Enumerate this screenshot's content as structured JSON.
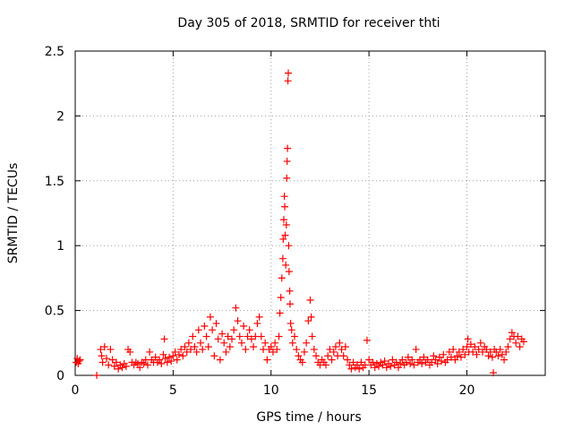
{
  "chart_data": {
    "type": "scatter",
    "title": "Day 305 of 2018, SRMTID for receiver thti",
    "xlabel": "GPS time / hours",
    "ylabel": "SRMTID / TECUs",
    "xlim": [
      0,
      24
    ],
    "ylim": [
      0,
      2.5
    ],
    "xticks": [
      0,
      5,
      10,
      15,
      20
    ],
    "xtick_labels": [
      "0",
      "5",
      "10",
      "15",
      "20"
    ],
    "yticks": [
      0,
      0.5,
      1,
      1.5,
      2,
      2.5
    ],
    "ytick_labels": [
      "0",
      "0.5",
      "1",
      "1.5",
      "2",
      "2.5"
    ],
    "grid": true,
    "marker": "+",
    "series": [
      {
        "name": "SRMTID",
        "color": "#ff0000",
        "points": [
          [
            0.05,
            0.1
          ],
          [
            0.1,
            0.13
          ],
          [
            0.15,
            0.09
          ],
          [
            0.2,
            0.11
          ],
          [
            0.25,
            0.12
          ],
          [
            1.1,
            0.0
          ],
          [
            1.3,
            0.2
          ],
          [
            1.35,
            0.15
          ],
          [
            1.4,
            0.1
          ],
          [
            1.5,
            0.22
          ],
          [
            1.6,
            0.13
          ],
          [
            1.7,
            0.08
          ],
          [
            1.8,
            0.2
          ],
          [
            1.9,
            0.12
          ],
          [
            2.0,
            0.07
          ],
          [
            2.1,
            0.1
          ],
          [
            2.2,
            0.05
          ],
          [
            2.3,
            0.08
          ],
          [
            2.4,
            0.06
          ],
          [
            2.5,
            0.09
          ],
          [
            2.6,
            0.07
          ],
          [
            2.7,
            0.2
          ],
          [
            2.8,
            0.18
          ],
          [
            2.9,
            0.1
          ],
          [
            3.0,
            0.08
          ],
          [
            3.1,
            0.1
          ],
          [
            3.2,
            0.09
          ],
          [
            3.3,
            0.06
          ],
          [
            3.4,
            0.1
          ],
          [
            3.5,
            0.09
          ],
          [
            3.6,
            0.12
          ],
          [
            3.7,
            0.08
          ],
          [
            3.8,
            0.18
          ],
          [
            3.9,
            0.12
          ],
          [
            4.0,
            0.1
          ],
          [
            4.1,
            0.14
          ],
          [
            4.2,
            0.1
          ],
          [
            4.3,
            0.12
          ],
          [
            4.4,
            0.09
          ],
          [
            4.5,
            0.16
          ],
          [
            4.55,
            0.28
          ],
          [
            4.6,
            0.13
          ],
          [
            4.7,
            0.1
          ],
          [
            4.8,
            0.14
          ],
          [
            4.9,
            0.11
          ],
          [
            5.0,
            0.15
          ],
          [
            5.1,
            0.18
          ],
          [
            5.2,
            0.12
          ],
          [
            5.3,
            0.16
          ],
          [
            5.4,
            0.2
          ],
          [
            5.5,
            0.15
          ],
          [
            5.6,
            0.22
          ],
          [
            5.7,
            0.18
          ],
          [
            5.8,
            0.25
          ],
          [
            5.9,
            0.2
          ],
          [
            6.0,
            0.3
          ],
          [
            6.1,
            0.22
          ],
          [
            6.2,
            0.18
          ],
          [
            6.3,
            0.35
          ],
          [
            6.4,
            0.25
          ],
          [
            6.5,
            0.2
          ],
          [
            6.6,
            0.38
          ],
          [
            6.7,
            0.3
          ],
          [
            6.8,
            0.22
          ],
          [
            6.9,
            0.45
          ],
          [
            7.0,
            0.35
          ],
          [
            7.1,
            0.15
          ],
          [
            7.2,
            0.4
          ],
          [
            7.3,
            0.28
          ],
          [
            7.4,
            0.12
          ],
          [
            7.5,
            0.32
          ],
          [
            7.6,
            0.25
          ],
          [
            7.7,
            0.18
          ],
          [
            7.8,
            0.3
          ],
          [
            7.9,
            0.22
          ],
          [
            8.0,
            0.28
          ],
          [
            8.1,
            0.35
          ],
          [
            8.2,
            0.52
          ],
          [
            8.3,
            0.42
          ],
          [
            8.4,
            0.3
          ],
          [
            8.5,
            0.25
          ],
          [
            8.6,
            0.38
          ],
          [
            8.7,
            0.2
          ],
          [
            8.8,
            0.3
          ],
          [
            8.9,
            0.35
          ],
          [
            9.0,
            0.28
          ],
          [
            9.1,
            0.22
          ],
          [
            9.2,
            0.3
          ],
          [
            9.3,
            0.4
          ],
          [
            9.4,
            0.45
          ],
          [
            9.5,
            0.3
          ],
          [
            9.6,
            0.2
          ],
          [
            9.7,
            0.25
          ],
          [
            9.8,
            0.12
          ],
          [
            9.9,
            0.2
          ],
          [
            10.0,
            0.22
          ],
          [
            10.1,
            0.18
          ],
          [
            10.2,
            0.25
          ],
          [
            10.3,
            0.2
          ],
          [
            10.4,
            0.3
          ],
          [
            10.45,
            0.48
          ],
          [
            10.5,
            0.6
          ],
          [
            10.55,
            0.75
          ],
          [
            10.6,
            0.9
          ],
          [
            10.62,
            1.05
          ],
          [
            10.65,
            1.2
          ],
          [
            10.68,
            1.38
          ],
          [
            10.7,
            1.3
          ],
          [
            10.72,
            1.08
          ],
          [
            10.75,
            0.85
          ],
          [
            10.78,
            1.16
          ],
          [
            10.8,
            1.52
          ],
          [
            10.82,
            1.65
          ],
          [
            10.84,
            1.75
          ],
          [
            10.86,
            2.27
          ],
          [
            10.88,
            2.33
          ],
          [
            10.9,
            1.0
          ],
          [
            10.92,
            0.8
          ],
          [
            10.95,
            0.65
          ],
          [
            10.97,
            0.55
          ],
          [
            11.0,
            0.4
          ],
          [
            11.05,
            0.35
          ],
          [
            11.1,
            0.25
          ],
          [
            11.2,
            0.3
          ],
          [
            11.3,
            0.2
          ],
          [
            11.4,
            0.15
          ],
          [
            11.5,
            0.12
          ],
          [
            11.6,
            0.1
          ],
          [
            11.7,
            0.18
          ],
          [
            11.8,
            0.25
          ],
          [
            11.9,
            0.42
          ],
          [
            12.0,
            0.58
          ],
          [
            12.05,
            0.45
          ],
          [
            12.1,
            0.3
          ],
          [
            12.2,
            0.2
          ],
          [
            12.3,
            0.15
          ],
          [
            12.4,
            0.1
          ],
          [
            12.5,
            0.08
          ],
          [
            12.6,
            0.12
          ],
          [
            12.7,
            0.1
          ],
          [
            12.8,
            0.08
          ],
          [
            12.9,
            0.15
          ],
          [
            13.0,
            0.2
          ],
          [
            13.1,
            0.12
          ],
          [
            13.2,
            0.18
          ],
          [
            13.3,
            0.22
          ],
          [
            13.4,
            0.15
          ],
          [
            13.5,
            0.25
          ],
          [
            13.6,
            0.2
          ],
          [
            13.7,
            0.15
          ],
          [
            13.8,
            0.22
          ],
          [
            13.9,
            0.12
          ],
          [
            14.0,
            0.08
          ],
          [
            14.1,
            0.05
          ],
          [
            14.2,
            0.1
          ],
          [
            14.3,
            0.06
          ],
          [
            14.4,
            0.08
          ],
          [
            14.5,
            0.05
          ],
          [
            14.6,
            0.1
          ],
          [
            14.7,
            0.06
          ],
          [
            14.8,
            0.08
          ],
          [
            14.9,
            0.27
          ],
          [
            15.0,
            0.12
          ],
          [
            15.1,
            0.08
          ],
          [
            15.2,
            0.1
          ],
          [
            15.3,
            0.06
          ],
          [
            15.4,
            0.09
          ],
          [
            15.5,
            0.07
          ],
          [
            15.6,
            0.1
          ],
          [
            15.7,
            0.08
          ],
          [
            15.8,
            0.11
          ],
          [
            15.9,
            0.06
          ],
          [
            16.0,
            0.09
          ],
          [
            16.1,
            0.07
          ],
          [
            16.2,
            0.12
          ],
          [
            16.3,
            0.08
          ],
          [
            16.4,
            0.1
          ],
          [
            16.5,
            0.06
          ],
          [
            16.6,
            0.09
          ],
          [
            16.7,
            0.12
          ],
          [
            16.8,
            0.08
          ],
          [
            16.9,
            0.1
          ],
          [
            17.0,
            0.14
          ],
          [
            17.1,
            0.09
          ],
          [
            17.2,
            0.12
          ],
          [
            17.3,
            0.08
          ],
          [
            17.4,
            0.2
          ],
          [
            17.5,
            0.1
          ],
          [
            17.6,
            0.12
          ],
          [
            17.7,
            0.09
          ],
          [
            17.8,
            0.14
          ],
          [
            17.9,
            0.1
          ],
          [
            18.0,
            0.12
          ],
          [
            18.1,
            0.08
          ],
          [
            18.2,
            0.1
          ],
          [
            18.3,
            0.15
          ],
          [
            18.4,
            0.12
          ],
          [
            18.5,
            0.09
          ],
          [
            18.6,
            0.14
          ],
          [
            18.7,
            0.11
          ],
          [
            18.8,
            0.16
          ],
          [
            18.9,
            0.1
          ],
          [
            19.0,
            0.12
          ],
          [
            19.1,
            0.18
          ],
          [
            19.2,
            0.14
          ],
          [
            19.3,
            0.2
          ],
          [
            19.4,
            0.12
          ],
          [
            19.5,
            0.15
          ],
          [
            19.6,
            0.18
          ],
          [
            19.7,
            0.14
          ],
          [
            19.8,
            0.2
          ],
          [
            19.9,
            0.16
          ],
          [
            20.0,
            0.22
          ],
          [
            20.05,
            0.28
          ],
          [
            20.1,
            0.18
          ],
          [
            20.2,
            0.24
          ],
          [
            20.3,
            0.18
          ],
          [
            20.4,
            0.22
          ],
          [
            20.5,
            0.16
          ],
          [
            20.6,
            0.2
          ],
          [
            20.7,
            0.25
          ],
          [
            20.8,
            0.18
          ],
          [
            20.9,
            0.22
          ],
          [
            21.0,
            0.2
          ],
          [
            21.1,
            0.15
          ],
          [
            21.2,
            0.18
          ],
          [
            21.3,
            0.14
          ],
          [
            21.35,
            0.02
          ],
          [
            21.4,
            0.2
          ],
          [
            21.5,
            0.18
          ],
          [
            21.6,
            0.15
          ],
          [
            21.7,
            0.2
          ],
          [
            21.8,
            0.16
          ],
          [
            21.9,
            0.12
          ],
          [
            22.0,
            0.18
          ],
          [
            22.1,
            0.22
          ],
          [
            22.2,
            0.28
          ],
          [
            22.3,
            0.33
          ],
          [
            22.4,
            0.3
          ],
          [
            22.5,
            0.25
          ],
          [
            22.6,
            0.3
          ],
          [
            22.7,
            0.22
          ],
          [
            22.8,
            0.28
          ],
          [
            22.9,
            0.26
          ]
        ]
      }
    ]
  }
}
